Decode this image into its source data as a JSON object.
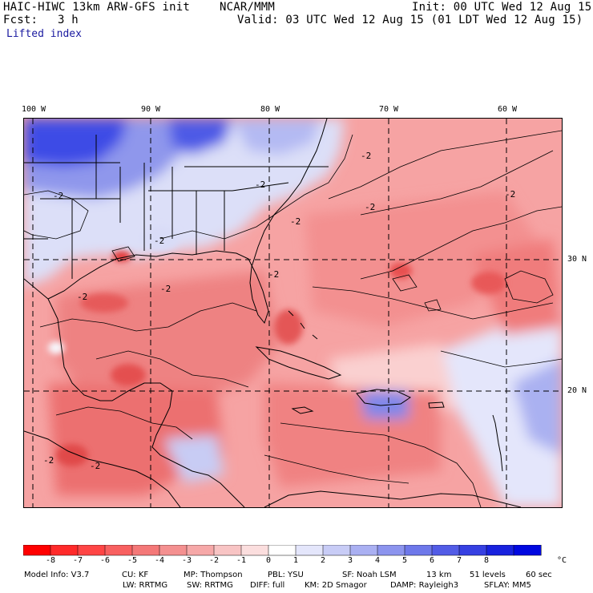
{
  "header": {
    "model_title": "HAIC-HIWC 13km ARW-GFS init",
    "org": "NCAR/MMM",
    "init": "Init: 00 UTC Wed 12 Aug 15",
    "fcst_label": "Fcst:",
    "fcst_value": "3 h",
    "valid": "Valid: 03 UTC Wed 12 Aug 15 (01 LDT Wed 12 Aug 15)",
    "field": "Lifted index"
  },
  "map": {
    "lon_labels": [
      "100 W",
      "90 W",
      "80 W",
      "70 W",
      "60 W"
    ],
    "lat_labels": [
      "30 N",
      "20 N"
    ],
    "contour_labels": [
      "-2",
      "-2",
      "-2",
      "-2",
      "-2",
      "-2",
      "-2",
      "-2",
      "-2",
      "-2",
      "-2",
      "-2"
    ],
    "colors": {
      "land_cool": "#d8dcf8",
      "deep_blue": "#2a3ee0",
      "pink": "#f8b4b4",
      "red": "#f07878",
      "dark_red": "#e64848"
    }
  },
  "colorbar": {
    "labels": [
      "-8",
      "-7",
      "-6",
      "-5",
      "-4",
      "-3",
      "-2",
      "-1",
      "0",
      "1",
      "2",
      "3",
      "4",
      "5",
      "6",
      "7",
      "8"
    ],
    "unit": "°C",
    "colors": [
      "#ff0000",
      "#ff2a2a",
      "#ff4545",
      "#f86060",
      "#f47878",
      "#f49090",
      "#f6a8a8",
      "#f8c4c4",
      "#fbdede",
      "#ffffff",
      "#e4e6fb",
      "#c8ccf6",
      "#aab0f2",
      "#8c94ee",
      "#6e78ea",
      "#525ce6",
      "#3640e2",
      "#1822de",
      "#0008e0"
    ]
  },
  "footer": {
    "line1": [
      "Model Info: V3.7",
      "CU: KF",
      "MP: Thompson",
      "PBL: YSU",
      "SF: Noah LSM",
      "13 km",
      "51 levels",
      "60 sec"
    ],
    "line2": [
      "LW: RRTMG",
      "SW: RRTMG",
      "DIFF: full",
      "KM: 2D Smagor",
      "DAMP: Rayleigh3",
      "SFLAY: MM5"
    ]
  }
}
